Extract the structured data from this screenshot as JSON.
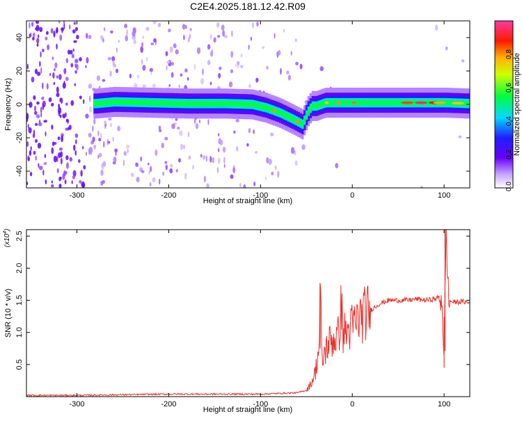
{
  "title": "C2E4.2025.181.12.42.R09",
  "colors": {
    "snr_line": "#e8322b",
    "axis": "#000000"
  },
  "chart_data": [
    {
      "type": "heatmap",
      "title": "C2E4.2025.181.12.42.R09",
      "xlabel": "Height of straight line (km)",
      "ylabel": "Frequency (Hz)",
      "xlim": [
        -355,
        128
      ],
      "ylim": [
        -50,
        50
      ],
      "x_ticks": [
        -300,
        -200,
        -100,
        0,
        100
      ],
      "y_ticks": [
        -40,
        -20,
        0,
        20,
        40
      ],
      "colorbar": {
        "label": "Normalized spectral amplitude",
        "range": [
          0,
          1
        ],
        "ticks": [
          0.0,
          0.2,
          0.4,
          0.6,
          0.8
        ],
        "colormap": "rainbow (white-violet-blue-cyan-green-yellow-red-magenta)"
      },
      "trace": {
        "description": "dominant frequency ridge",
        "x": [
          -280,
          -260,
          -220,
          -180,
          -140,
          -110,
          -95,
          -80,
          -65,
          -55,
          -50,
          -45,
          -40,
          -30,
          -20,
          0,
          20,
          60,
          80,
          100,
          128
        ],
        "y": [
          0.5,
          1.5,
          1.0,
          0.5,
          0.5,
          0,
          -2,
          -5,
          -9,
          -12,
          -5,
          -1,
          -1,
          1,
          1,
          1,
          1,
          1,
          1,
          1,
          0.5
        ]
      }
    },
    {
      "type": "line",
      "xlabel": "Height of straight line (km)",
      "ylabel": "SNR (10 * v/v)",
      "y_scale_label": "(x10^4)",
      "y_scale_base": "(x10",
      "y_scale_exp": "4",
      "xlim": [
        -355,
        128
      ],
      "ylim": [
        0,
        2.6
      ],
      "x_ticks": [
        -300,
        -200,
        -100,
        0,
        100
      ],
      "y_ticks": [
        0.5,
        1.0,
        1.5,
        2.0,
        2.5
      ],
      "y_tick_labels": [
        "0.5",
        "1.0",
        "1.5",
        "2.0",
        "2.5"
      ],
      "series": [
        {
          "x": [
            -355,
            -300,
            -250,
            -200,
            -150,
            -100,
            -80,
            -60,
            -50,
            -45,
            -40,
            -38,
            -36,
            -35,
            -33,
            -30,
            -25,
            -20,
            -15,
            -12,
            -10,
            -5,
            0,
            10,
            20,
            30,
            40,
            50,
            60,
            70,
            80,
            90,
            95,
            98,
            100,
            102,
            105,
            110,
            120,
            128
          ],
          "values": [
            0.02,
            0.02,
            0.03,
            0.04,
            0.04,
            0.04,
            0.05,
            0.06,
            0.1,
            0.2,
            0.4,
            0.6,
            0.8,
            1.75,
            0.5,
            0.7,
            0.85,
            0.9,
            0.95,
            1.4,
            1.0,
            1.0,
            1.1,
            1.25,
            1.35,
            1.45,
            1.5,
            1.5,
            1.5,
            1.52,
            1.5,
            1.52,
            1.55,
            1.5,
            0.45,
            2.6,
            1.5,
            1.47,
            1.48,
            1.46
          ]
        }
      ]
    }
  ]
}
